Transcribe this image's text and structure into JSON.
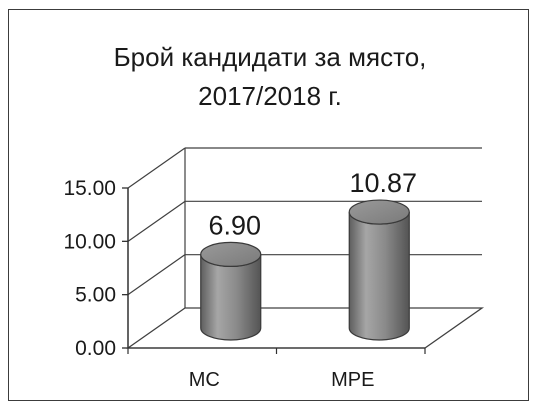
{
  "chart_data": {
    "type": "bar",
    "style": "3d-cylinder",
    "title_lines": [
      "Брой кандидати за място,",
      "2017/2018 г."
    ],
    "categories": [
      "МС",
      "МРЕ"
    ],
    "values": [
      6.9,
      10.87
    ],
    "data_labels": [
      "6.90",
      "10.87"
    ],
    "y_ticks": [
      "0.00",
      "5.00",
      "10.00",
      "15.00"
    ],
    "ylim": [
      0,
      15
    ],
    "grid": true,
    "legend": "none",
    "colors": {
      "bar": "#8c8c8c",
      "gridline": "#404040",
      "axis": "#303030"
    }
  }
}
